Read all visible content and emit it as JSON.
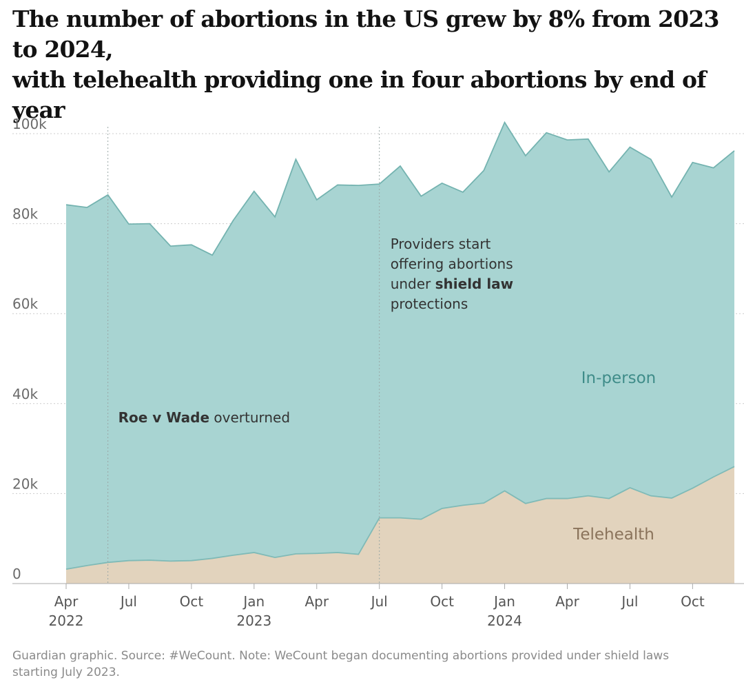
{
  "title": {
    "line1": "The number of abortions in the US grew by 8% from 2023 to 2024,",
    "line2": "with telehealth providing one in four abortions by end of year"
  },
  "footnote": {
    "line1": "Guardian graphic. Source: #WeCount. Note: WeCount began documenting abortions provided under shield laws",
    "line2": "starting July 2023."
  },
  "colors": {
    "in_person": "#a8d4d2",
    "in_person_line": "#74b3b0",
    "telehealth": "#e2d3bd",
    "telehealth_line": "#7fbab7",
    "in_person_label": "#3f8c89",
    "telehealth_label": "#8a735b",
    "grid": "#cccccc",
    "axis": "#aaaaaa"
  },
  "chart_data": {
    "type": "area",
    "stacked": true,
    "x": [
      "2022-04",
      "2022-05",
      "2022-06",
      "2022-07",
      "2022-08",
      "2022-09",
      "2022-10",
      "2022-11",
      "2022-12",
      "2023-01",
      "2023-02",
      "2023-03",
      "2023-04",
      "2023-05",
      "2023-06",
      "2023-07",
      "2023-08",
      "2023-09",
      "2023-10",
      "2023-11",
      "2023-12",
      "2024-01",
      "2024-02",
      "2024-03",
      "2024-04",
      "2024-05",
      "2024-06",
      "2024-07",
      "2024-08",
      "2024-09",
      "2024-10",
      "2024-11",
      "2024-12"
    ],
    "series": [
      {
        "name": "Telehealth",
        "values": [
          3200,
          4000,
          4700,
          5100,
          5200,
          5000,
          5100,
          5600,
          6300,
          6900,
          5800,
          6600,
          6700,
          6900,
          6500,
          14600,
          14600,
          14300,
          16700,
          17400,
          17900,
          20600,
          17800,
          18900,
          18900,
          19500,
          18900,
          21300,
          19500,
          19000,
          21200,
          23700,
          26000
        ]
      },
      {
        "name": "In-person",
        "values": [
          81000,
          79600,
          81700,
          74800,
          74800,
          70000,
          70200,
          67400,
          74400,
          80300,
          75700,
          87700,
          78600,
          81700,
          82000,
          74200,
          78200,
          71800,
          72300,
          69600,
          73900,
          81900,
          77300,
          81300,
          79700,
          79300,
          72600,
          75700,
          74800,
          66900,
          72400,
          68700,
          70200
        ]
      }
    ],
    "ylim": [
      0,
      100000
    ],
    "yticks": [
      {
        "value": 0,
        "label": "0"
      },
      {
        "value": 20000,
        "label": "20k"
      },
      {
        "value": 40000,
        "label": "40k"
      },
      {
        "value": 60000,
        "label": "60k"
      },
      {
        "value": 80000,
        "label": "80k"
      },
      {
        "value": 100000,
        "label": "100k"
      }
    ],
    "xticks": [
      {
        "x": "2022-04",
        "label": "Apr",
        "year": "2022"
      },
      {
        "x": "2022-07",
        "label": "Jul",
        "year": ""
      },
      {
        "x": "2022-10",
        "label": "Oct",
        "year": ""
      },
      {
        "x": "2023-01",
        "label": "Jan",
        "year": "2023"
      },
      {
        "x": "2023-04",
        "label": "Apr",
        "year": ""
      },
      {
        "x": "2023-07",
        "label": "Jul",
        "year": ""
      },
      {
        "x": "2023-10",
        "label": "Oct",
        "year": ""
      },
      {
        "x": "2024-01",
        "label": "Jan",
        "year": "2024"
      },
      {
        "x": "2024-04",
        "label": "Apr",
        "year": ""
      },
      {
        "x": "2024-07",
        "label": "Jul",
        "year": ""
      },
      {
        "x": "2024-10",
        "label": "Oct",
        "year": ""
      }
    ],
    "series_labels": {
      "in_person": "In-person",
      "telehealth": "Telehealth"
    },
    "annotations": [
      {
        "x": "2022-06",
        "bold": "Roe v Wade",
        "text": " overturned"
      },
      {
        "x": "2023-07",
        "lines": [
          "Providers start",
          "offering abortions"
        ],
        "line3_pre": "under ",
        "line3_bold": "shield law",
        "line4": "protections"
      }
    ],
    "grid": true
  }
}
